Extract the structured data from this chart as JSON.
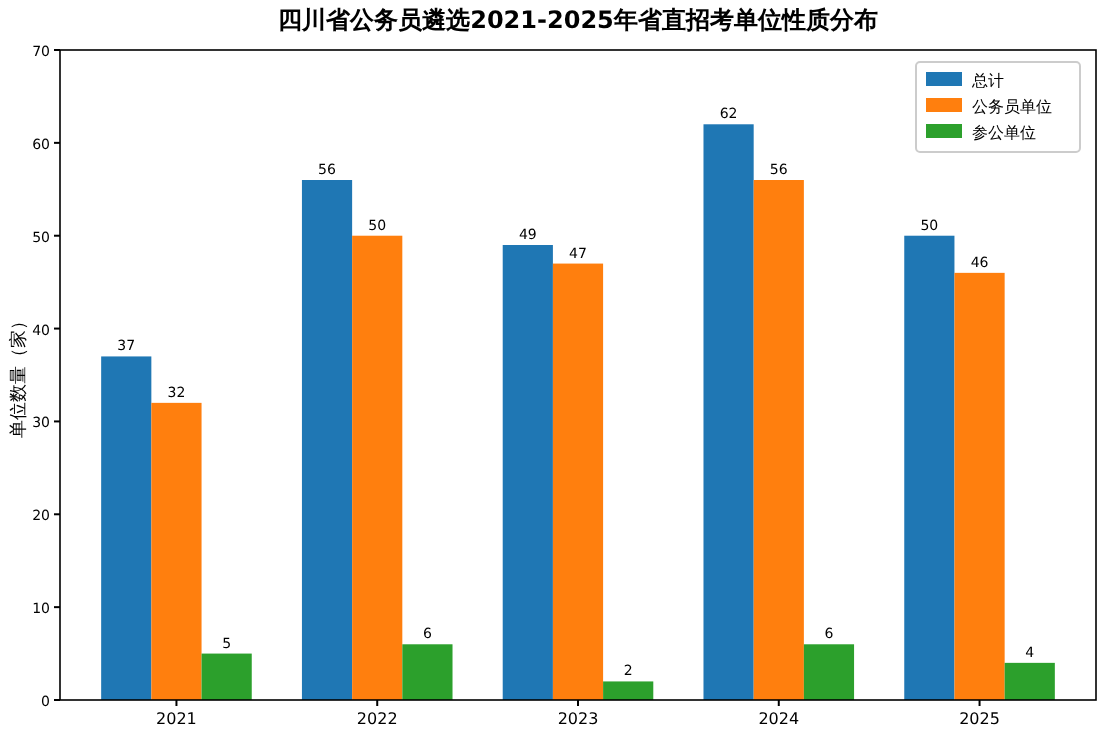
{
  "chart_data": {
    "type": "bar",
    "title": "四川省公务员遴选2021-2025年省直招考单位性质分布",
    "ylabel": "单位数量（家）",
    "categories": [
      "2021",
      "2022",
      "2023",
      "2024",
      "2025"
    ],
    "series": [
      {
        "name": "总计",
        "color": "#1f77b4",
        "values": [
          37,
          56,
          49,
          62,
          50
        ]
      },
      {
        "name": "公务员单位",
        "color": "#ff7f0e",
        "values": [
          32,
          50,
          47,
          56,
          46
        ]
      },
      {
        "name": "参公单位",
        "color": "#2ca02c",
        "values": [
          5,
          6,
          2,
          6,
          4
        ]
      }
    ],
    "ylim": [
      0,
      70
    ],
    "yticks": [
      0,
      10,
      20,
      30,
      40,
      50,
      60,
      70
    ],
    "data_labels": true,
    "legend": "top right",
    "grid": false
  }
}
